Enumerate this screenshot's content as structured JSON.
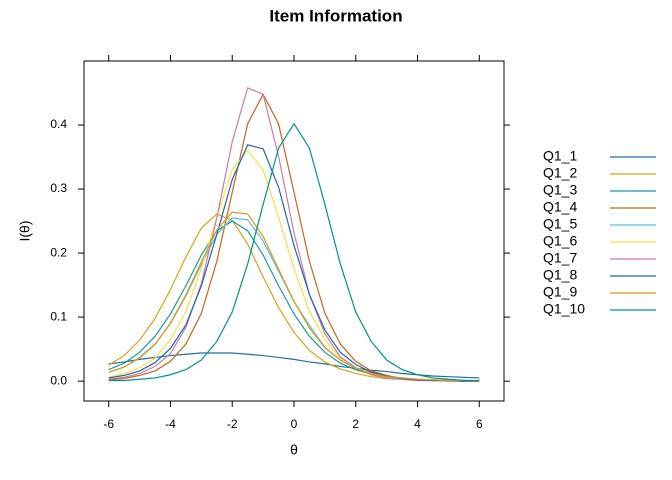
{
  "chart_data": {
    "type": "line",
    "title": "Item Information",
    "x_label": "θ",
    "y_label": "I(θ)",
    "x": [
      -6,
      -5.5,
      -5,
      -4.5,
      -4,
      -3.5,
      -3,
      -2.5,
      -2,
      -1.5,
      -1,
      -0.5,
      0,
      0.5,
      1,
      1.5,
      2,
      2.5,
      3,
      3.5,
      4,
      4.5,
      5,
      5.5,
      6
    ],
    "xlim": [
      -6.8,
      6.8
    ],
    "xticks": [
      -6,
      -4,
      -2,
      0,
      2,
      4,
      6
    ],
    "ylim": [
      -0.031,
      0.5
    ],
    "yticks": [
      {
        "value": 0,
        "label": "0.0"
      },
      0.1,
      0.2,
      0.3,
      0.4
    ],
    "legend": "right",
    "series": [
      {
        "name": "Q1_1",
        "color": "#1f6f9f",
        "values": [
          0.027,
          0.03,
          0.034,
          0.037,
          0.04,
          0.042,
          0.044,
          0.044,
          0.044,
          0.042,
          0.04,
          0.037,
          0.034,
          0.03,
          0.027,
          0.023,
          0.02,
          0.017,
          0.015,
          0.012,
          0.01,
          0.008,
          0.007,
          0.006,
          0.005
        ]
      },
      {
        "name": "Q1_2",
        "color": "#d9a21b",
        "values": [
          0.025,
          0.04,
          0.064,
          0.098,
          0.143,
          0.194,
          0.239,
          0.261,
          0.251,
          0.214,
          0.163,
          0.115,
          0.076,
          0.048,
          0.03,
          0.019,
          0.012,
          0.007,
          0.004,
          0.003,
          0.001,
          0.001,
          0.001,
          0.0,
          0.0
        ]
      },
      {
        "name": "Q1_3",
        "color": "#1a9a9a",
        "values": [
          0.018,
          0.028,
          0.045,
          0.07,
          0.105,
          0.149,
          0.197,
          0.235,
          0.25,
          0.235,
          0.197,
          0.149,
          0.105,
          0.07,
          0.045,
          0.028,
          0.018,
          0.011,
          0.007,
          0.004,
          0.002,
          0.002,
          0.001,
          0.001,
          0.0
        ]
      },
      {
        "name": "Q1_4",
        "color": "#c8641a",
        "values": [
          0.002,
          0.004,
          0.009,
          0.016,
          0.031,
          0.058,
          0.106,
          0.187,
          0.295,
          0.402,
          0.448,
          0.402,
          0.295,
          0.187,
          0.106,
          0.058,
          0.031,
          0.016,
          0.009,
          0.004,
          0.002,
          0.001,
          0.001,
          0.0,
          0.0
        ]
      },
      {
        "name": "Q1_5",
        "color": "#56bde9",
        "values": [
          0.014,
          0.022,
          0.037,
          0.058,
          0.09,
          0.133,
          0.182,
          0.229,
          0.255,
          0.252,
          0.219,
          0.172,
          0.124,
          0.087,
          0.053,
          0.033,
          0.02,
          0.013,
          0.008,
          0.005,
          0.003,
          0.002,
          0.001,
          0.001,
          0.0
        ]
      },
      {
        "name": "Q1_6",
        "color": "#f2e24a",
        "values": [
          0.006,
          0.012,
          0.021,
          0.036,
          0.065,
          0.109,
          0.176,
          0.256,
          0.33,
          0.36,
          0.33,
          0.256,
          0.176,
          0.109,
          0.065,
          0.036,
          0.021,
          0.012,
          0.006,
          0.004,
          0.002,
          0.001,
          0.001,
          0.0,
          0.0
        ]
      },
      {
        "name": "Q1_7",
        "color": "#cc79a7",
        "values": [
          0.003,
          0.006,
          0.012,
          0.023,
          0.043,
          0.084,
          0.152,
          0.255,
          0.374,
          0.458,
          0.448,
          0.351,
          0.232,
          0.135,
          0.074,
          0.038,
          0.021,
          0.01,
          0.005,
          0.003,
          0.001,
          0.001,
          0.0,
          0.0,
          0.0
        ]
      },
      {
        "name": "Q1_8",
        "color": "#2166ac",
        "values": [
          0.005,
          0.009,
          0.016,
          0.029,
          0.051,
          0.088,
          0.149,
          0.229,
          0.315,
          0.369,
          0.363,
          0.303,
          0.212,
          0.135,
          0.08,
          0.045,
          0.026,
          0.014,
          0.008,
          0.004,
          0.002,
          0.001,
          0.001,
          0.0,
          0.0
        ]
      },
      {
        "name": "Q1_9",
        "color": "#e09a10",
        "values": [
          0.014,
          0.022,
          0.036,
          0.057,
          0.091,
          0.135,
          0.186,
          0.236,
          0.264,
          0.261,
          0.226,
          0.175,
          0.125,
          0.083,
          0.052,
          0.033,
          0.02,
          0.012,
          0.007,
          0.005,
          0.003,
          0.002,
          0.001,
          0.001,
          0.0
        ]
      },
      {
        "name": "Q1_10",
        "color": "#00938a",
        "values": [
          0.001,
          0.001,
          0.003,
          0.005,
          0.01,
          0.018,
          0.033,
          0.062,
          0.108,
          0.183,
          0.276,
          0.364,
          0.402,
          0.364,
          0.276,
          0.183,
          0.108,
          0.062,
          0.033,
          0.018,
          0.01,
          0.005,
          0.003,
          0.001,
          0.001
        ]
      }
    ]
  }
}
